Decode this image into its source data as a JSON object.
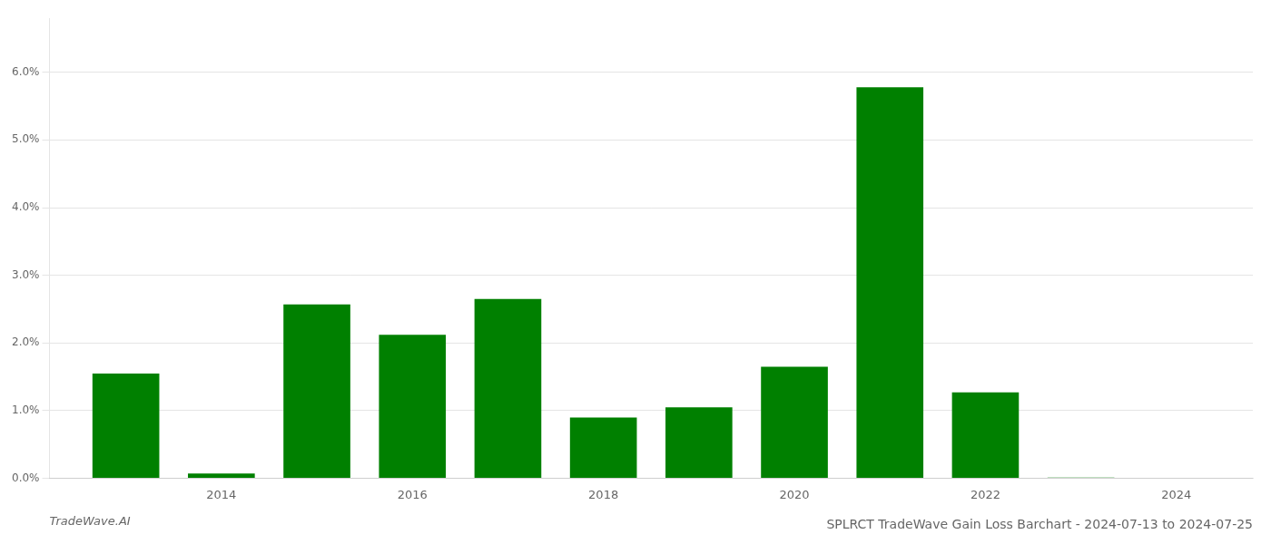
{
  "chart_data": {
    "type": "bar",
    "title": "SPLRCT TradeWave Gain Loss Barchart - 2024-07-13 to 2024-07-25",
    "annotations": [
      "TradeWave.AI"
    ],
    "x": [
      2013,
      2014,
      2015,
      2016,
      2017,
      2018,
      2019,
      2020,
      2021,
      2022,
      2023
    ],
    "values": [
      0.0155,
      0.0007,
      0.0257,
      0.0212,
      0.0265,
      0.009,
      0.0105,
      0.0165,
      0.0578,
      0.0127,
      0.0001
    ],
    "color": "#008000",
    "xlim": [
      2012.2,
      2024.8
    ],
    "xticks": [
      2014,
      2016,
      2018,
      2020,
      2022,
      2024
    ],
    "ylim": [
      0,
      0.068
    ],
    "yticks": [
      {
        "value": 0.0,
        "label": "0.0%"
      },
      {
        "value": 0.01,
        "label": "1.0%"
      },
      {
        "value": 0.02,
        "label": "2.0%"
      },
      {
        "value": 0.03,
        "label": "3.0%"
      },
      {
        "value": 0.04,
        "label": "4.0%"
      },
      {
        "value": 0.05,
        "label": "5.0%"
      },
      {
        "value": 0.06,
        "label": "6.0%"
      }
    ],
    "grid": "y"
  }
}
